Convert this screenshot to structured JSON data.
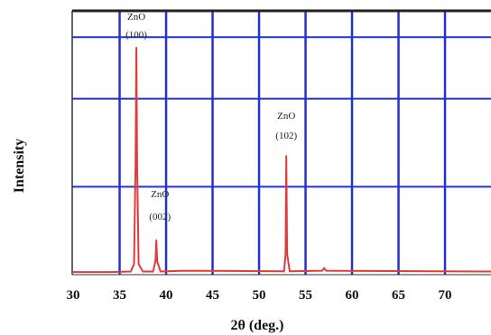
{
  "chart_data": {
    "type": "line",
    "xlabel": "2θ (deg.)",
    "ylabel": "Intensity",
    "xlim": [
      30,
      75
    ],
    "ylim": [
      0,
      100
    ],
    "x_ticks": [
      "30",
      "35",
      "40",
      "45",
      "50",
      "55",
      "60",
      "65",
      "70"
    ],
    "grid": true,
    "colors": {
      "line": "#e23b3b",
      "grid": "#2233cc",
      "frame": "#222222",
      "background": "#ffffff"
    },
    "series": [
      {
        "values_xy": [
          [
            30.0,
            1.0
          ],
          [
            34.0,
            1.0
          ],
          [
            36.2,
            1.2
          ],
          [
            36.55,
            4.0
          ],
          [
            36.72,
            42.0
          ],
          [
            36.8,
            86.0
          ],
          [
            36.88,
            42.0
          ],
          [
            37.05,
            4.0
          ],
          [
            37.5,
            1.2
          ],
          [
            38.6,
            1.2
          ],
          [
            38.85,
            5.0
          ],
          [
            38.95,
            13.0
          ],
          [
            39.05,
            5.0
          ],
          [
            39.4,
            1.2
          ],
          [
            42.0,
            1.5
          ],
          [
            52.7,
            1.3
          ],
          [
            52.85,
            8.0
          ],
          [
            52.93,
            45.0
          ],
          [
            53.02,
            8.0
          ],
          [
            53.3,
            1.3
          ],
          [
            56.8,
            1.5
          ],
          [
            57.0,
            2.5
          ],
          [
            57.2,
            1.5
          ],
          [
            75.0,
            1.2
          ]
        ]
      }
    ],
    "annotations": [
      {
        "name": "ZnO",
        "hkl": "(100)",
        "x": 36.8
      },
      {
        "name": "ZnO",
        "hkl": "(002)",
        "x": 38.95
      },
      {
        "name": "ZnO",
        "hkl": "(102)",
        "x": 52.93
      }
    ]
  }
}
